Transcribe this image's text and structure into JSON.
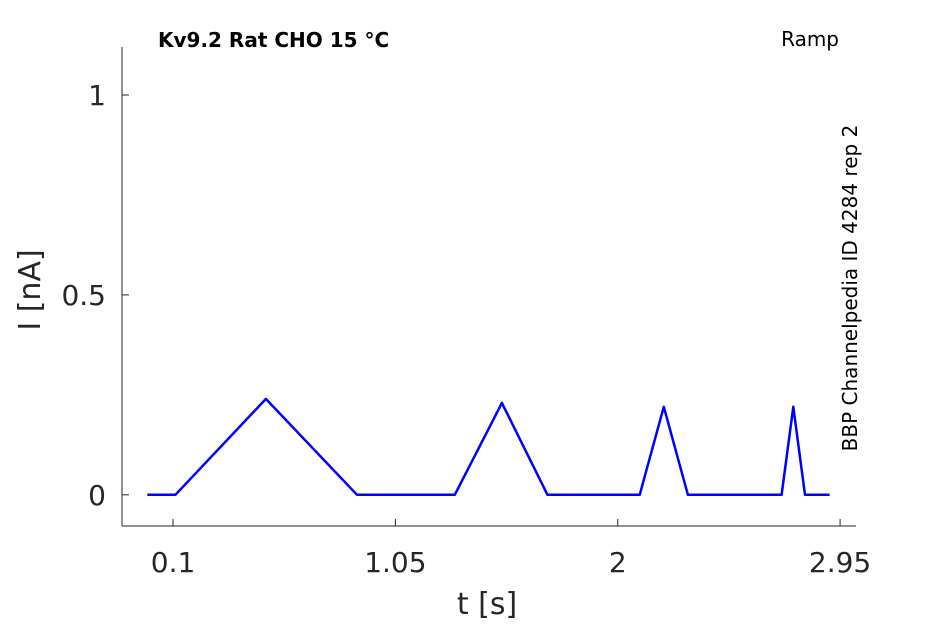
{
  "chart_data": {
    "type": "line",
    "title": "Kv9.2  Rat  CHO  15 °C",
    "protocol_label": "Ramp",
    "side_label": "BBP Channelpedia ID 4284 rep 2",
    "xlabel": "t [s]",
    "ylabel": "I [nA]",
    "xlim": [
      -0.118,
      3.018
    ],
    "ylim": [
      -0.078,
      1.12
    ],
    "xticks": [
      0.1,
      1.05,
      2,
      2.95
    ],
    "xtick_labels": [
      "0.1",
      "1.05",
      "2",
      "2.95"
    ],
    "yticks": [
      0,
      0.5,
      1
    ],
    "ytick_labels": [
      "0",
      "0.5",
      "1"
    ],
    "grid": false,
    "color": "#0000ff",
    "series": [
      {
        "x": [
          -0.01,
          0.11,
          0.497,
          0.886,
          1.304,
          1.505,
          1.7,
          2.094,
          2.197,
          2.3,
          2.7,
          2.75,
          2.8,
          2.905
        ],
        "y": [
          0,
          0,
          0.24,
          0,
          0,
          0.23,
          0,
          0,
          0.22,
          0,
          0,
          0.22,
          0,
          0
        ]
      }
    ]
  }
}
